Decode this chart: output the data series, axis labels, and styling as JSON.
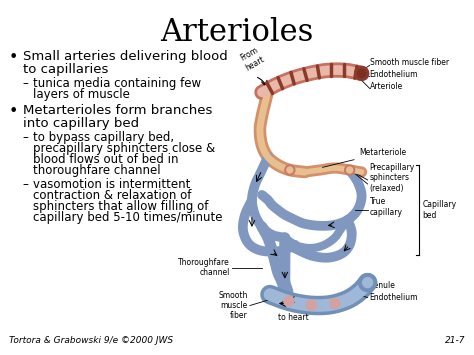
{
  "title": "Arterioles",
  "title_fontsize": 22,
  "title_font": "serif",
  "bg_color": "#ffffff",
  "text_color": "#000000",
  "bullet1_line1": "Small arteries delivering blood",
  "bullet1_line2": "to capillaries",
  "sub1_line1": "tunica media containing few",
  "sub1_line2": "layers of muscle",
  "bullet2_line1": "Metarterioles form branches",
  "bullet2_line2": "into capillary bed",
  "sub2a_line1": "to bypass capillary bed,",
  "sub2a_line2": "precapillary sphincters close &",
  "sub2a_line3": "blood flows out of bed in",
  "sub2a_line4": "thoroughfare channel",
  "sub2b_line1": "vasomotion is intermittent",
  "sub2b_line2": "contraction & relaxation of",
  "sub2b_line3": "sphincters that allow filling of",
  "sub2b_line4": "capillary bed 5-10 times/minute",
  "footer": "Tortora & Grabowski 9/e ©2000 JWS",
  "page_num": "21-7",
  "bullet_fontsize": 9.5,
  "sub_fontsize": 8.5,
  "footer_fontsize": 6.5,
  "label_fontsize": 5.5,
  "art_color": "#c87060",
  "art_light": "#e8b8a8",
  "art_ring": "#8b3a2a",
  "meta_color": "#d4906a",
  "cap_color": "#8098c0",
  "cap_light": "#a0b8d8",
  "venule_color": "#7090b8",
  "ring_color": "#d4a0a0",
  "sphincter_fill": "#c87868"
}
